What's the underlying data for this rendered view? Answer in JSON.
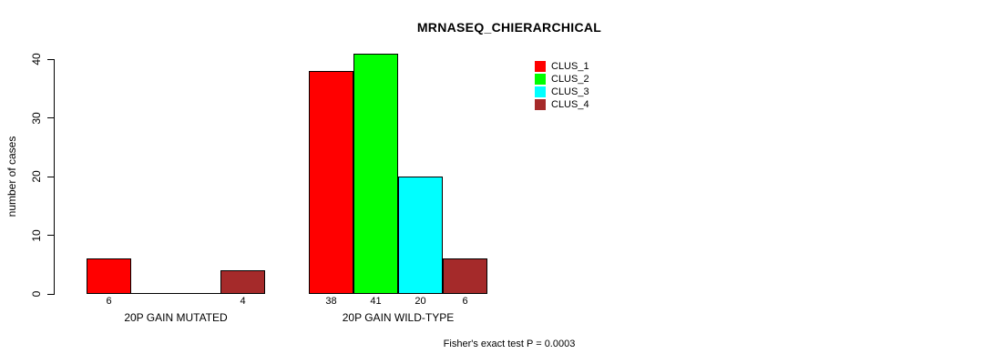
{
  "chart_data": {
    "type": "bar",
    "title": "MRNASEQ_CHIERARCHICAL",
    "ylabel": "number of cases",
    "xlabel": "",
    "ylim": [
      0,
      40
    ],
    "yticks": [
      0,
      10,
      20,
      30,
      40
    ],
    "categories": [
      "20P GAIN MUTATED",
      "20P GAIN WILD-TYPE"
    ],
    "series": [
      {
        "name": "CLUS_1",
        "color": "#ff0000",
        "values": [
          6,
          38
        ]
      },
      {
        "name": "CLUS_2",
        "color": "#00ff00",
        "values": [
          0,
          41
        ]
      },
      {
        "name": "CLUS_3",
        "color": "#00ffff",
        "values": [
          0,
          20
        ]
      },
      {
        "name": "CLUS_4",
        "color": "#a52a2a",
        "values": [
          4,
          6
        ]
      }
    ],
    "legend": [
      "CLUS_1",
      "CLUS_2",
      "CLUS_3",
      "CLUS_4"
    ],
    "legend_position": "top-right",
    "grid": false,
    "annotation": "Fisher's exact test P = 0.0003"
  },
  "colors": {
    "background": "#ffffff",
    "axis": "#000000",
    "bar_border": "#000000",
    "text": "#000000"
  }
}
